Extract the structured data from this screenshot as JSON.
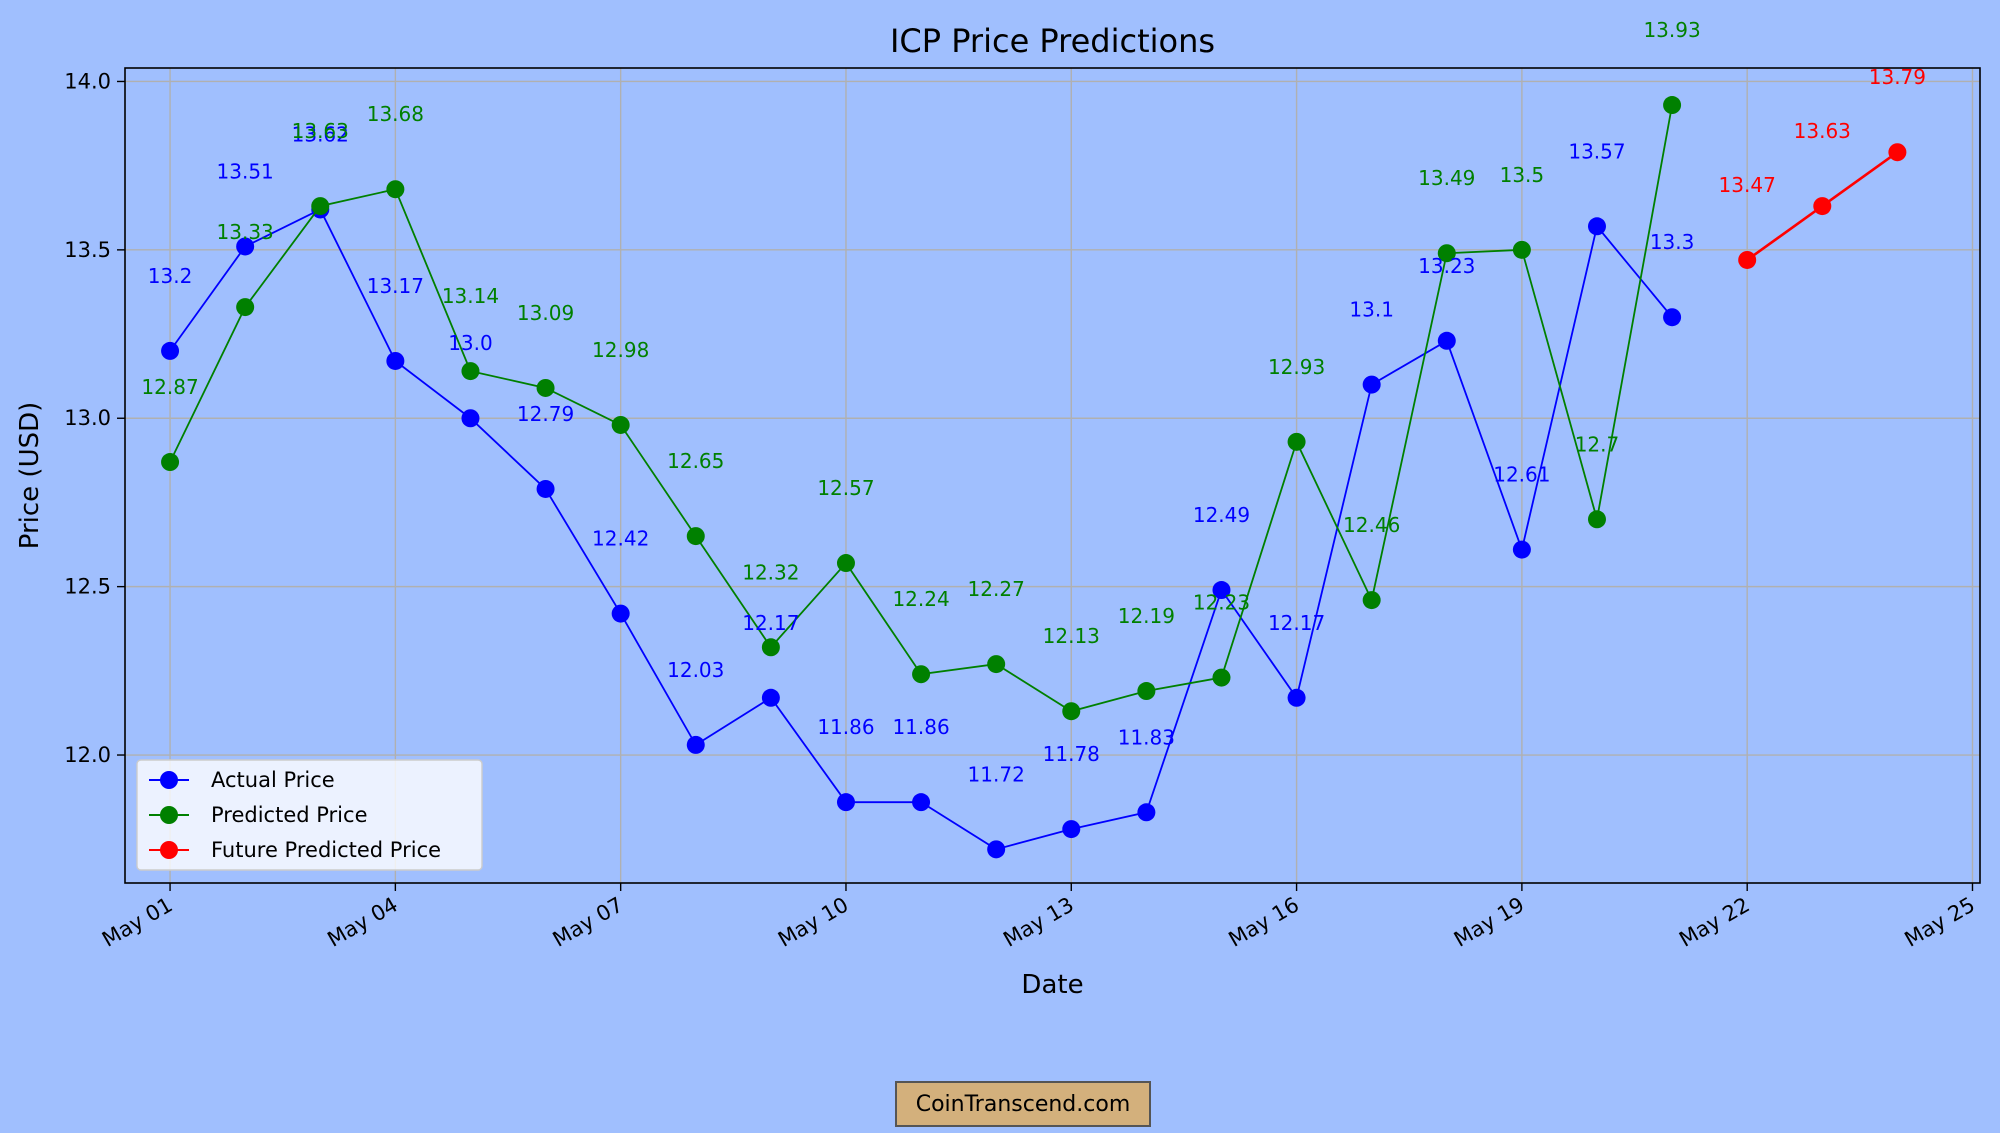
{
  "chart_data": {
    "type": "line",
    "title": "ICP Price Predictions",
    "xlabel": "Date",
    "ylabel": "Price (USD)",
    "ylim": [
      11.62,
      14.04
    ],
    "xlim": [
      "Apr 30.4",
      "May 25.1"
    ],
    "grid": true,
    "legend_position": "lower-left",
    "y_ticks": [
      12.0,
      12.5,
      13.0,
      13.5,
      14.0
    ],
    "y_tick_labels": [
      "12.0",
      "12.5",
      "13.0",
      "13.5",
      "14.0"
    ],
    "x_ticks": [
      1,
      4,
      7,
      10,
      13,
      16,
      19,
      22,
      25
    ],
    "x_tick_labels": [
      "May 01",
      "May 04",
      "May 07",
      "May 10",
      "May 13",
      "May 16",
      "May 19",
      "May 22",
      "May 25"
    ],
    "series": [
      {
        "name": "Actual Price",
        "color": "#0000ff",
        "x": [
          1,
          2,
          3,
          4,
          5,
          6,
          7,
          8,
          9,
          10,
          11,
          12,
          13,
          14,
          15,
          16,
          17,
          18,
          19,
          20,
          21
        ],
        "values": [
          13.2,
          13.51,
          13.62,
          13.17,
          13.0,
          12.79,
          12.42,
          12.03,
          12.17,
          11.86,
          11.86,
          11.72,
          11.78,
          11.83,
          12.49,
          12.17,
          13.1,
          13.23,
          12.61,
          13.57,
          13.3
        ],
        "labels": [
          "13.2",
          "13.51",
          "13.62",
          "13.17",
          "13.0",
          "12.79",
          "12.42",
          "12.03",
          "12.17",
          "11.86",
          "11.86",
          "11.72",
          "11.78",
          "11.83",
          "12.49",
          "12.17",
          "13.1",
          "13.23",
          "12.61",
          "13.57",
          "13.3"
        ]
      },
      {
        "name": "Predicted Price",
        "color": "#008000",
        "x": [
          1,
          2,
          3,
          4,
          5,
          6,
          7,
          8,
          9,
          10,
          11,
          12,
          13,
          14,
          15,
          16,
          17,
          18,
          19,
          20,
          21
        ],
        "values": [
          12.87,
          13.33,
          13.63,
          13.68,
          13.14,
          13.09,
          12.98,
          12.65,
          12.32,
          12.57,
          12.24,
          12.27,
          12.13,
          12.19,
          12.23,
          12.93,
          12.46,
          13.49,
          13.5,
          12.7,
          13.93
        ],
        "labels": [
          "12.87",
          "13.33",
          "13.63",
          "13.68",
          "13.14",
          "13.09",
          "12.98",
          "12.65",
          "12.32",
          "12.57",
          "12.24",
          "12.27",
          "12.13",
          "12.19",
          "12.23",
          "12.93",
          "12.46",
          "13.49",
          "13.5",
          "12.7",
          "13.93"
        ]
      },
      {
        "name": "Future Predicted Price",
        "color": "#ff0000",
        "x": [
          22,
          23,
          24
        ],
        "values": [
          13.47,
          13.63,
          13.79
        ],
        "labels": [
          "13.47",
          "13.63",
          "13.79"
        ]
      }
    ]
  },
  "watermark": "CoinTranscend.com"
}
